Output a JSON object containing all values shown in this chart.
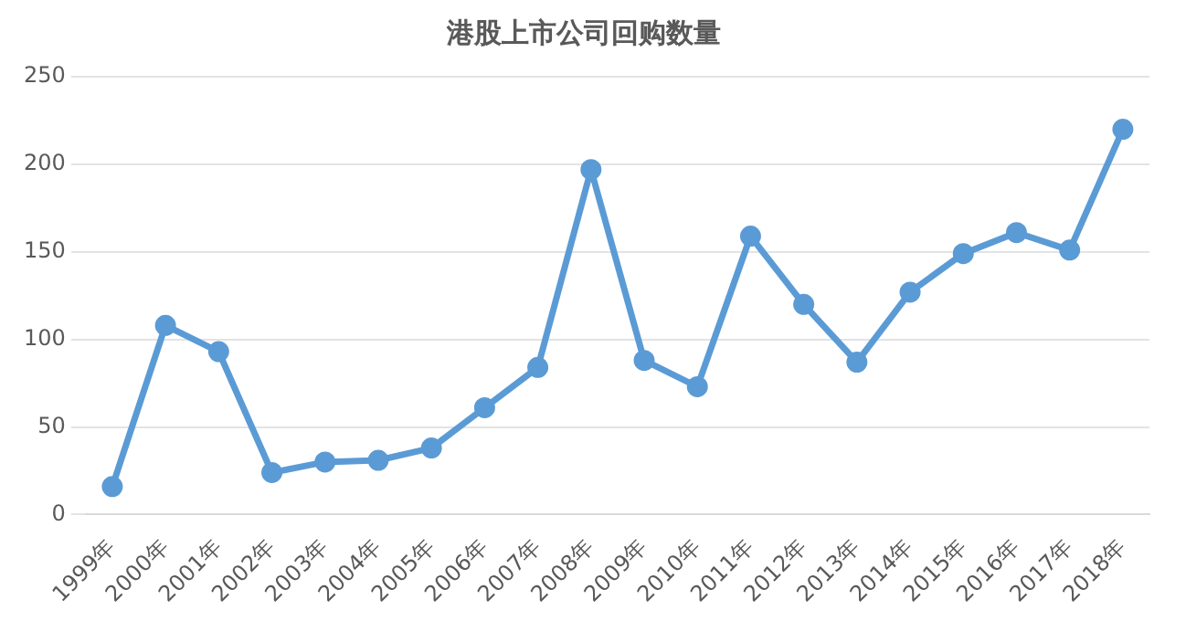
{
  "chart_data": {
    "type": "line",
    "title": "港股上市公司回购数量",
    "categories": [
      "1999年",
      "2000年",
      "2001年",
      "2002年",
      "2003年",
      "2004年",
      "2005年",
      "2006年",
      "2007年",
      "2008年",
      "2009年",
      "2010年",
      "2011年",
      "2012年",
      "2013年",
      "2014年",
      "2015年",
      "2016年",
      "2017年",
      "2018年"
    ],
    "series": [
      {
        "color": "#5b9bd5",
        "values": [
          16,
          108,
          93,
          24,
          30,
          31,
          38,
          61,
          84,
          197,
          88,
          73,
          159,
          120,
          87,
          127,
          149,
          161,
          151,
          220
        ]
      }
    ],
    "ylim": [
      0,
      250
    ],
    "yticks": [
      0,
      50,
      100,
      150,
      200,
      250
    ],
    "grid": "y",
    "marker": "circle",
    "line_style": "solid",
    "legend": false
  }
}
